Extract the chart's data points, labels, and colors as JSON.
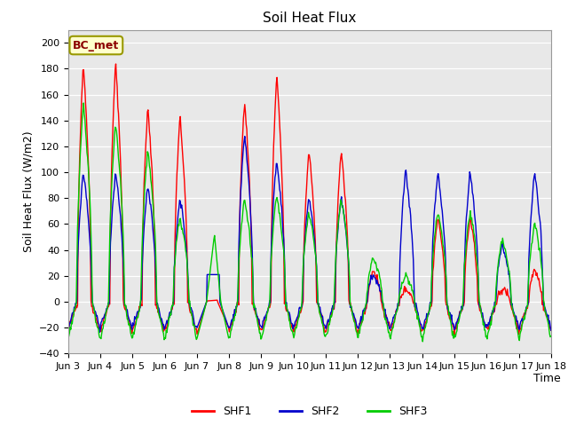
{
  "title": "Soil Heat Flux",
  "ylabel": "Soil Heat Flux (W/m2)",
  "xlabel": "Time",
  "ylim": [
    -40,
    210
  ],
  "yticks": [
    -40,
    -20,
    0,
    20,
    40,
    60,
    80,
    100,
    120,
    140,
    160,
    180,
    200
  ],
  "annotation_text": "BC_met",
  "legend_labels": [
    "SHF1",
    "SHF2",
    "SHF3"
  ],
  "legend_colors": [
    "#ff0000",
    "#0000cc",
    "#00cc00"
  ],
  "bg_color": "#e8e8e8",
  "fig_color": "#ffffff",
  "num_days": 15,
  "points_per_day": 48,
  "start_day": 3,
  "end_day": 18,
  "xtick_labels": [
    "Jun 3",
    "Jun 4",
    "Jun 5",
    "Jun 6",
    "Jun 7",
    "Jun 8",
    "Jun 9",
    "Jun 10",
    "Jun 11",
    "Jun 12",
    "Jun 13",
    "Jun 14",
    "Jun 15",
    "Jun 16",
    "Jun 17",
    "Jun 18"
  ]
}
